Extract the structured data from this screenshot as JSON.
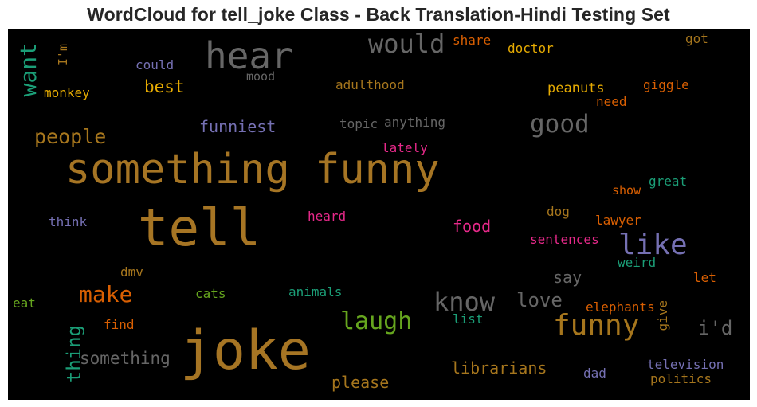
{
  "title": "WordCloud for tell_joke Class - Back Translation-Hindi Testing Set",
  "words": [
    {
      "text": "joke",
      "color": "#a67524"
    },
    {
      "text": "tell",
      "color": "#a67524"
    },
    {
      "text": "something funny",
      "color": "#a67524"
    },
    {
      "text": "hear",
      "color": "#666666"
    },
    {
      "text": "would",
      "color": "#666666"
    },
    {
      "text": "want",
      "color": "#1b9e77"
    },
    {
      "text": "I'm",
      "color": "#a6761d"
    },
    {
      "text": "could",
      "color": "#7570b3"
    },
    {
      "text": "mood",
      "color": "#666666"
    },
    {
      "text": "adulthood",
      "color": "#a6761d"
    },
    {
      "text": "share",
      "color": "#d95f02"
    },
    {
      "text": "doctor",
      "color": "#e6ab02"
    },
    {
      "text": "got",
      "color": "#a6761d"
    },
    {
      "text": "monkey",
      "color": "#e6ab02"
    },
    {
      "text": "best",
      "color": "#e6ab02"
    },
    {
      "text": "peanuts",
      "color": "#e6ab02"
    },
    {
      "text": "giggle",
      "color": "#d95f02"
    },
    {
      "text": "need",
      "color": "#d95f02"
    },
    {
      "text": "people",
      "color": "#a6761d"
    },
    {
      "text": "funniest",
      "color": "#7570b3"
    },
    {
      "text": "topic",
      "color": "#666666"
    },
    {
      "text": "anything",
      "color": "#666666"
    },
    {
      "text": "good",
      "color": "#666666"
    },
    {
      "text": "lately",
      "color": "#e7298a"
    },
    {
      "text": "great",
      "color": "#1b9e77"
    },
    {
      "text": "show",
      "color": "#d95f02"
    },
    {
      "text": "think",
      "color": "#7570b3"
    },
    {
      "text": "heard",
      "color": "#e7298a"
    },
    {
      "text": "food",
      "color": "#e7298a"
    },
    {
      "text": "dog",
      "color": "#a6761d"
    },
    {
      "text": "lawyer",
      "color": "#d95f02"
    },
    {
      "text": "like",
      "color": "#7570b3"
    },
    {
      "text": "sentences",
      "color": "#e7298a"
    },
    {
      "text": "weird",
      "color": "#1b9e77"
    },
    {
      "text": "dmv",
      "color": "#a6761d"
    },
    {
      "text": "make",
      "color": "#d95f02"
    },
    {
      "text": "say",
      "color": "#666666"
    },
    {
      "text": "let",
      "color": "#d95f02"
    },
    {
      "text": "cats",
      "color": "#66a61e"
    },
    {
      "text": "animals",
      "color": "#1b9e77"
    },
    {
      "text": "know",
      "color": "#666666"
    },
    {
      "text": "love",
      "color": "#666666"
    },
    {
      "text": "eat",
      "color": "#66a61e"
    },
    {
      "text": "elephants",
      "color": "#d95f02"
    },
    {
      "text": "give",
      "color": "#a6761d"
    },
    {
      "text": "find",
      "color": "#d95f02"
    },
    {
      "text": "laugh",
      "color": "#66a61e"
    },
    {
      "text": "list",
      "color": "#1b9e77"
    },
    {
      "text": "funny",
      "color": "#a6761d"
    },
    {
      "text": "i'd",
      "color": "#666666"
    },
    {
      "text": "thing",
      "color": "#1b9e77"
    },
    {
      "text": "something",
      "color": "#666666"
    },
    {
      "text": "librarians",
      "color": "#a6761d"
    },
    {
      "text": "dad",
      "color": "#7570b3"
    },
    {
      "text": "television",
      "color": "#7570b3"
    },
    {
      "text": "please",
      "color": "#a6761d"
    },
    {
      "text": "politics",
      "color": "#a6761d"
    }
  ]
}
